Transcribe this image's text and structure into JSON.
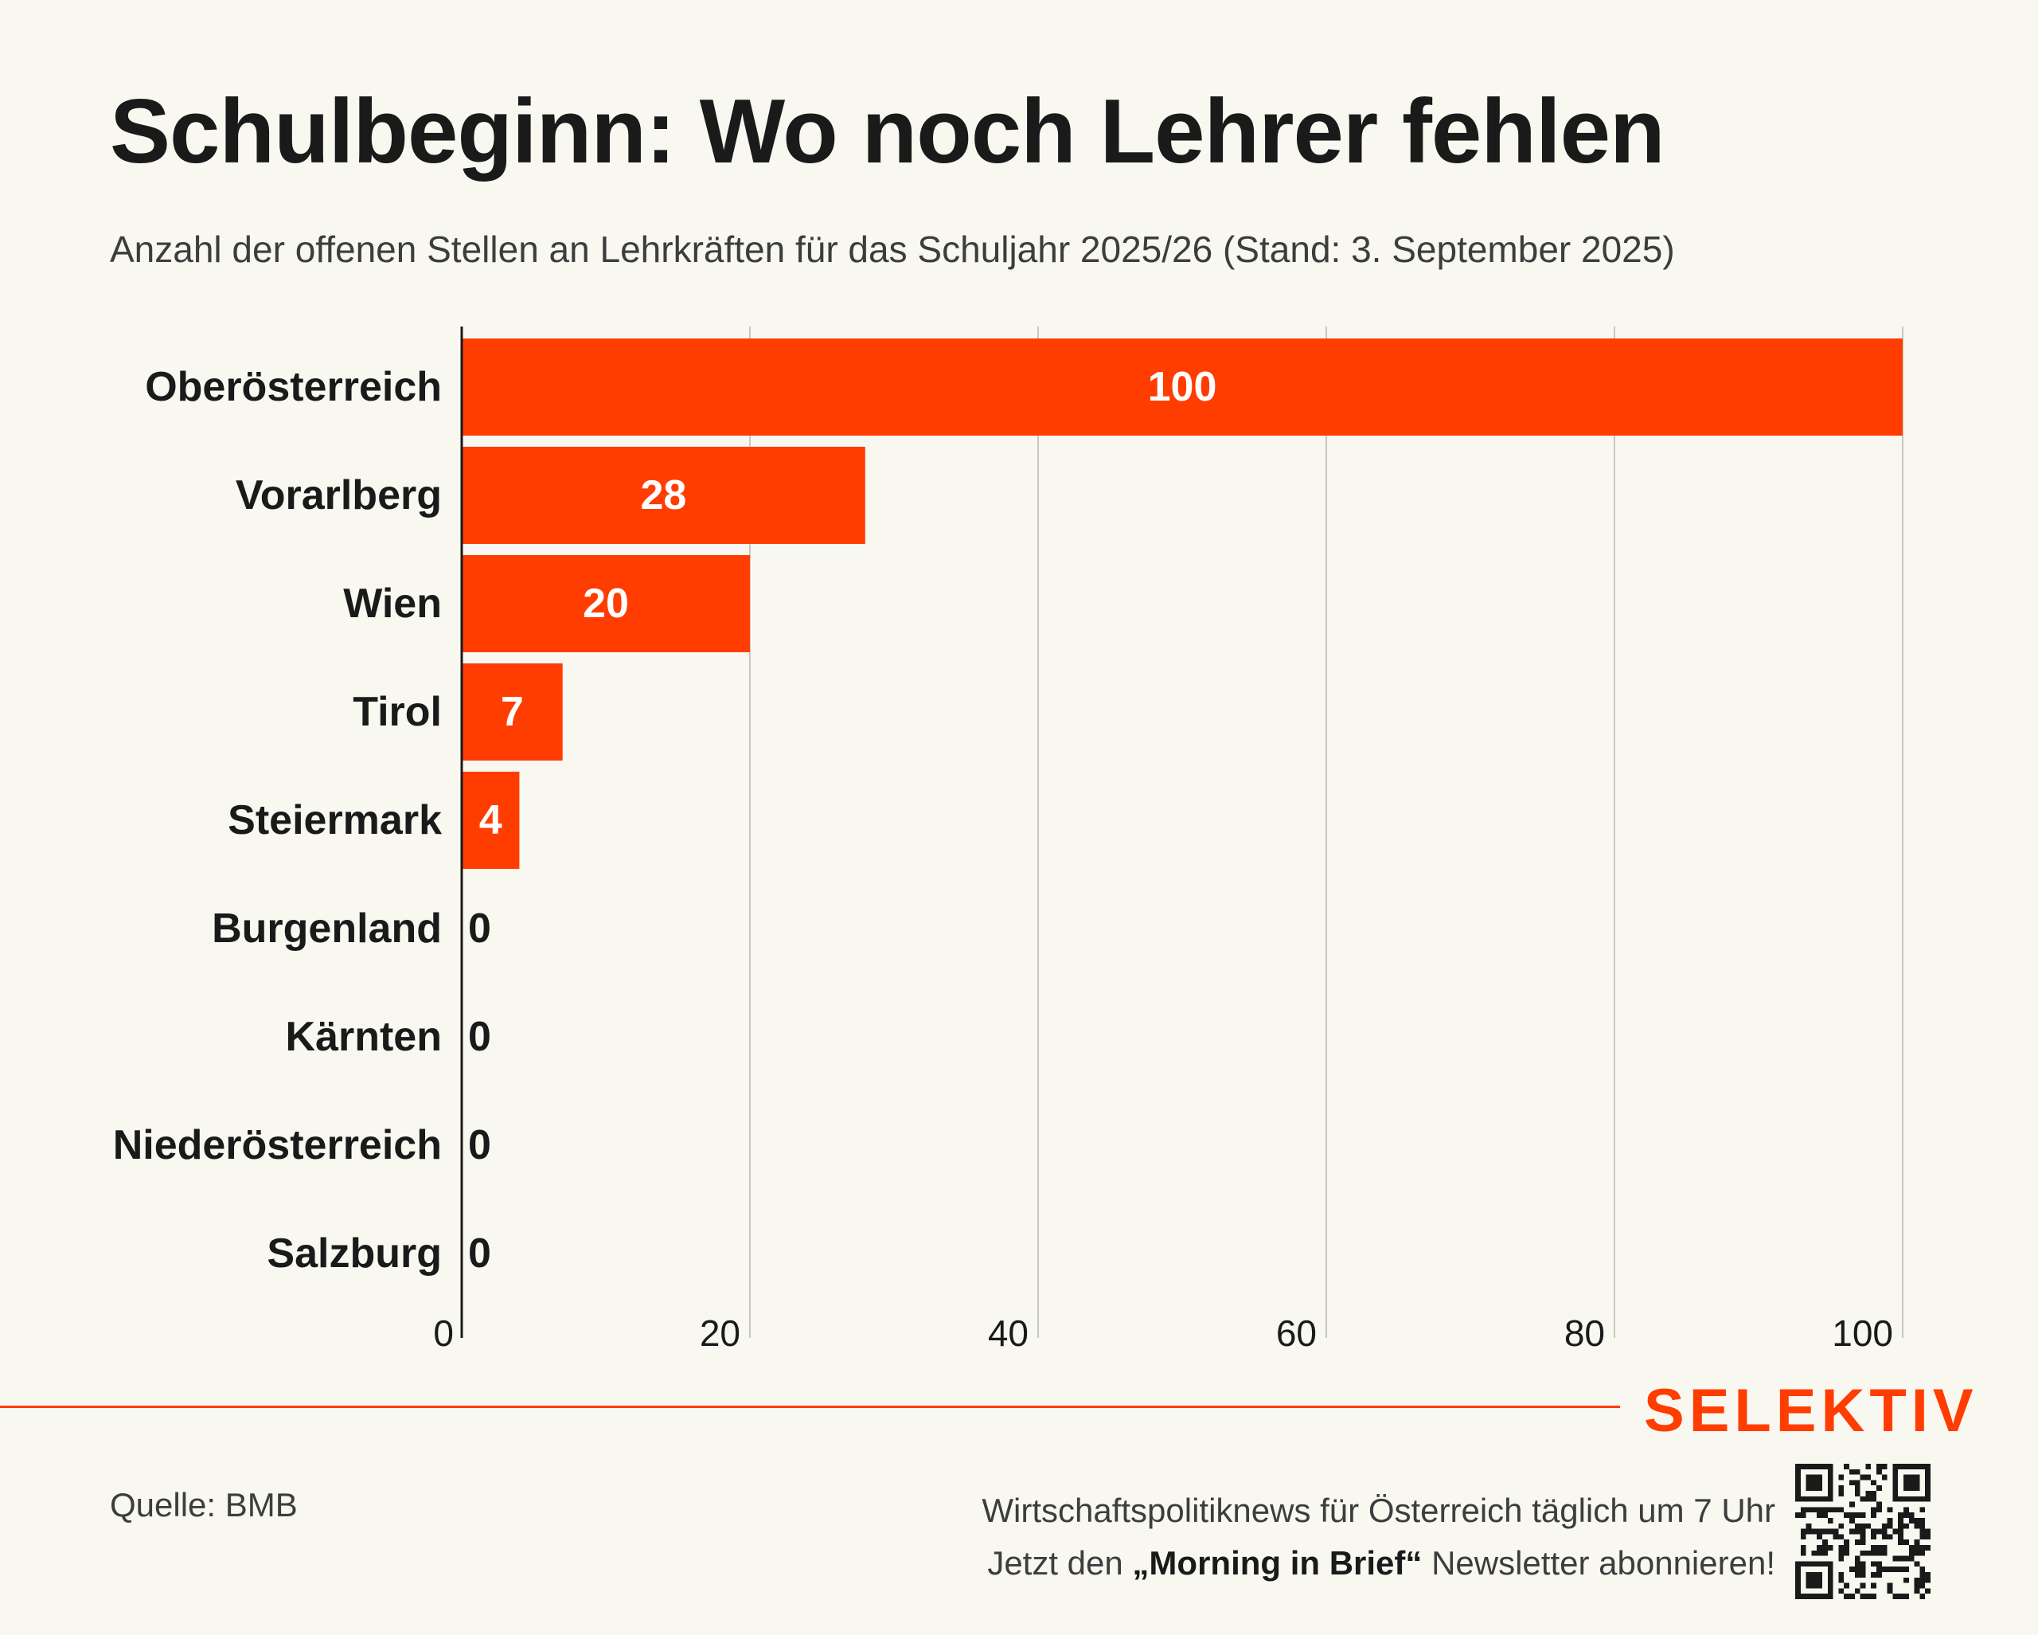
{
  "title": "Schulbeginn: Wo noch Lehrer fehlen",
  "subtitle": "Anzahl der offenen Stellen an Lehrkräften für das Schuljahr 2025/26 (Stand: 3. September 2025)",
  "chart_data": {
    "type": "bar",
    "orientation": "horizontal",
    "categories": [
      "Oberösterreich",
      "Vorarlberg",
      "Wien",
      "Tirol",
      "Steiermark",
      "Burgenland",
      "Kärnten",
      "Niederösterreich",
      "Salzburg"
    ],
    "values": [
      100,
      28,
      20,
      7,
      4,
      0,
      0,
      0,
      0
    ],
    "xlim": [
      0,
      100
    ],
    "xticks": [
      0,
      20,
      40,
      60,
      80,
      100
    ],
    "grid": "vertical",
    "bar_color": "#ff3d00"
  },
  "logo": "SELEKTIV",
  "source": "Quelle: BMB",
  "promo": {
    "line1": "Wirtschaftspolitiknews für Österreich täglich um 7 Uhr",
    "line2_pre": "Jetzt den ",
    "line2_bold": "„Morning in Brief“",
    "line2_post": " Newsletter abonnieren!"
  },
  "colors": {
    "accent": "#ff3d00",
    "background": "#f8f7f0",
    "text": "#1a1a1a"
  },
  "icons": {
    "qr": "qr-code-icon"
  }
}
